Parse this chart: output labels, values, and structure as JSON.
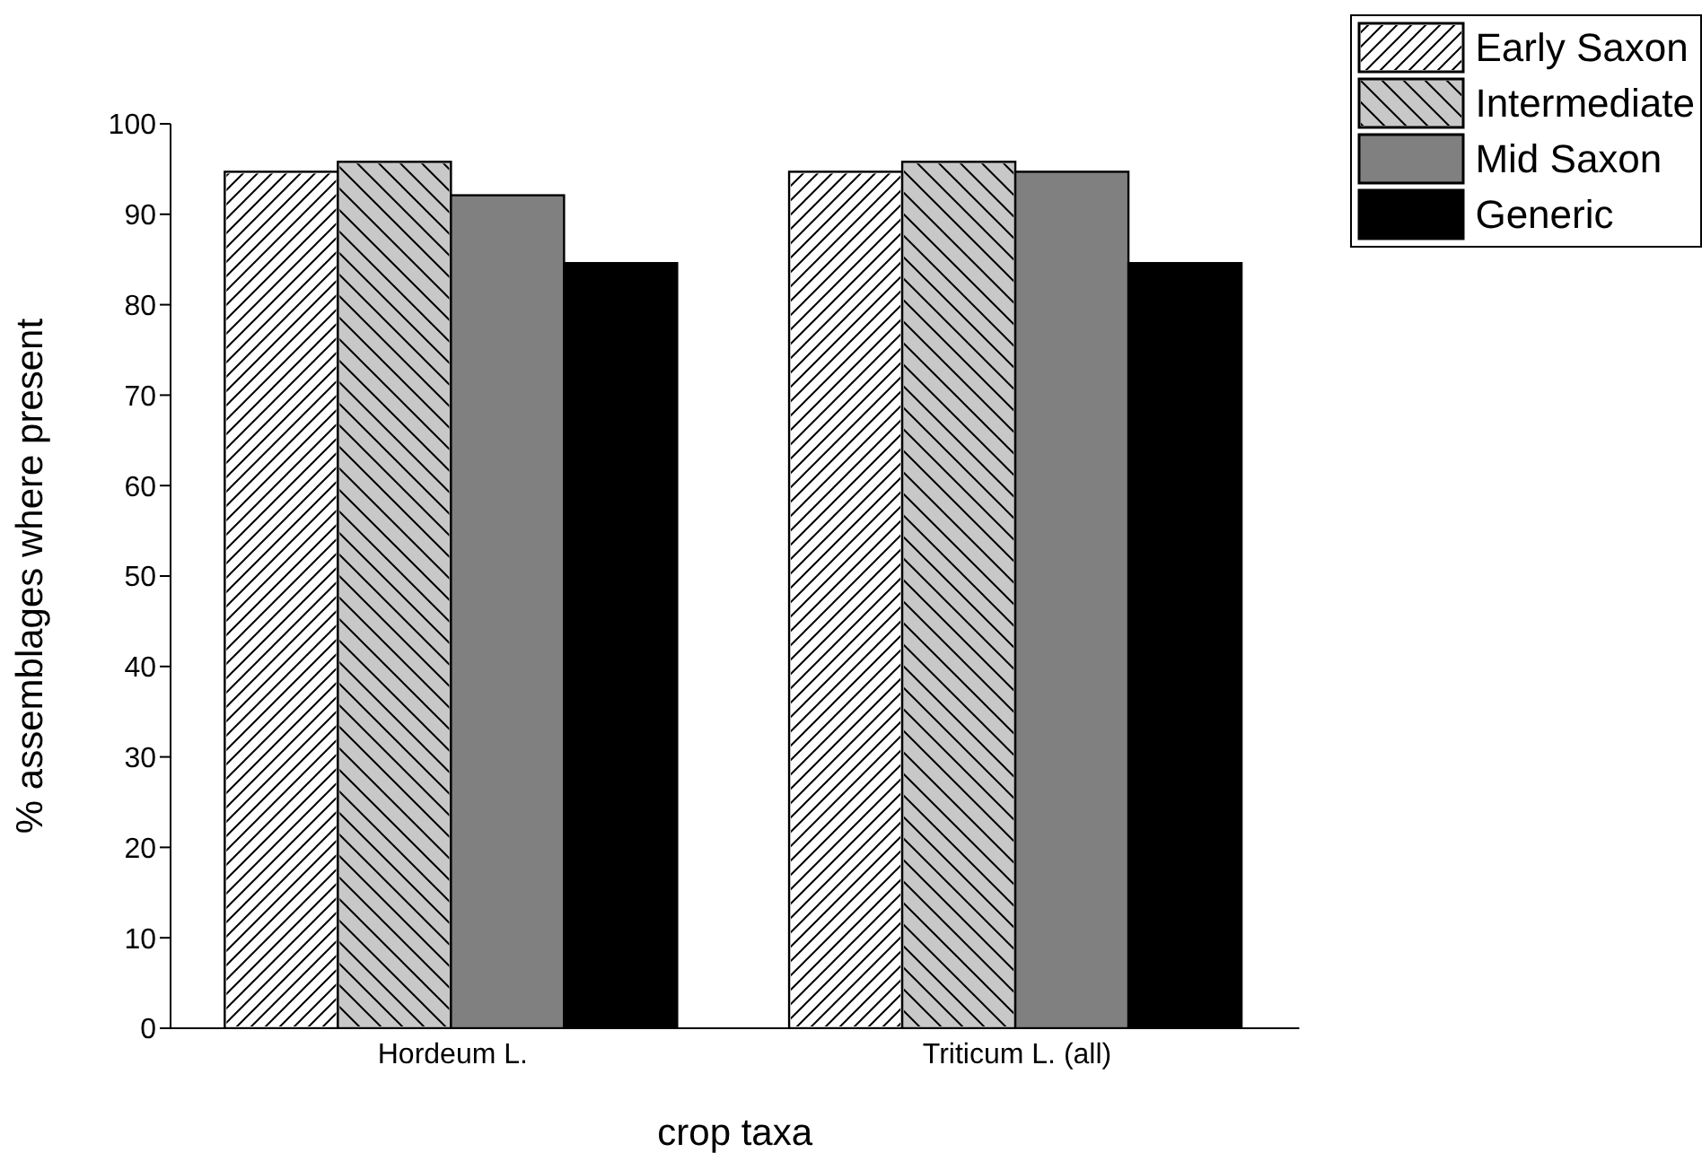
{
  "chart_data": {
    "type": "bar",
    "xlabel": "crop taxa",
    "ylabel": "% assemblages where present",
    "categories": [
      "Hordeum L.",
      "Triticum L. (all)"
    ],
    "series": [
      {
        "name": "Early Saxon",
        "color": "#ffffff",
        "values": [
          94.7,
          94.7
        ]
      },
      {
        "name": "Intermediate",
        "color": "#c8c8c8",
        "values": [
          95.8,
          95.8
        ]
      },
      {
        "name": "Mid Saxon",
        "color": "#808080",
        "values": [
          92.1,
          94.7
        ]
      },
      {
        "name": "Generic",
        "color": "#000000",
        "values": [
          84.6,
          84.6
        ]
      }
    ],
    "ylim": [
      0,
      100
    ],
    "yticks": [
      0,
      10,
      20,
      30,
      40,
      50,
      60,
      70,
      80,
      90,
      100
    ],
    "grid": false,
    "legend": "top right"
  }
}
